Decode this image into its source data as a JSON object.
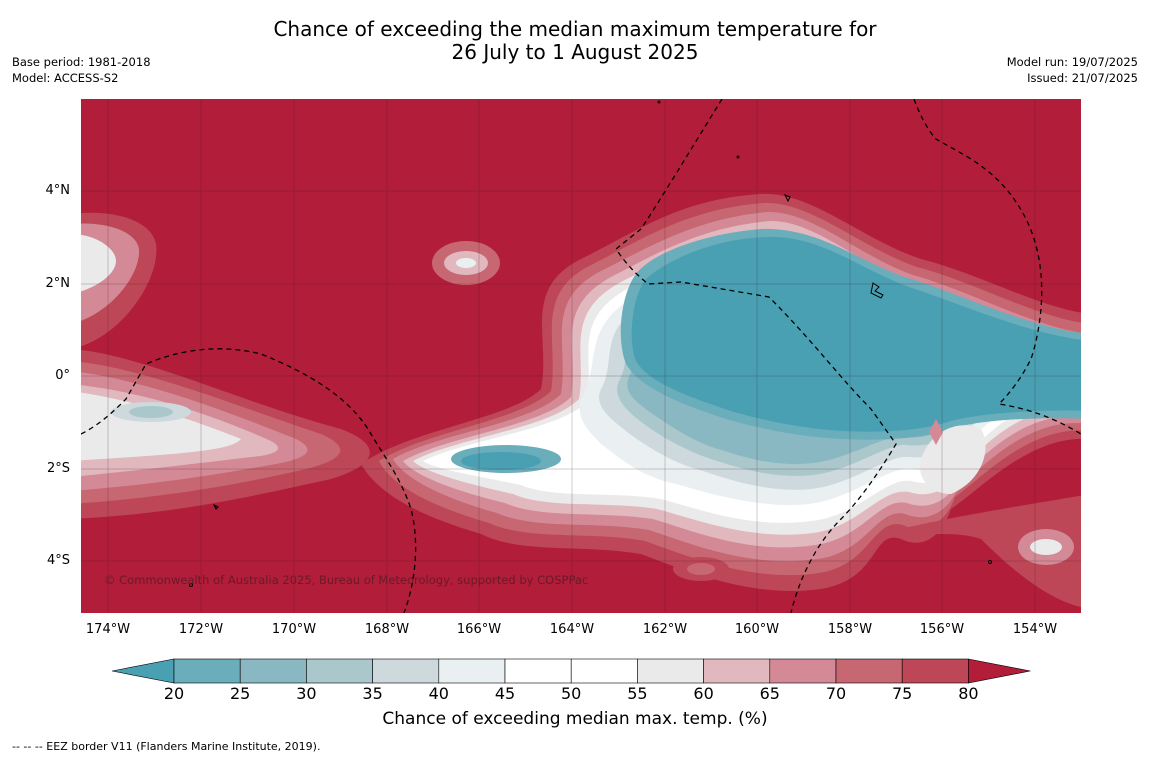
{
  "title_line1": "Chance of exceeding the median maximum temperature for",
  "title_line2": "26 July to 1 August 2025",
  "meta_left": [
    "Base period: 1981-2018",
    "Model: ACCESS-S2"
  ],
  "meta_right": [
    "Model run: 19/07/2025",
    "Issued: 21/07/2025"
  ],
  "lat_ticks": [
    "4°N",
    "2°N",
    "0°",
    "2°S",
    "4°S"
  ],
  "lon_ticks": [
    "174°W",
    "172°W",
    "170°W",
    "168°W",
    "166°W",
    "164°W",
    "162°W",
    "160°W",
    "158°W",
    "156°W",
    "154°W"
  ],
  "copyright": "© Commonwealth of Australia 2025, Bureau of Meteorology, supported by COSPPac",
  "colorbar": {
    "ticks": [
      "20",
      "25",
      "30",
      "35",
      "40",
      "45",
      "50",
      "55",
      "60",
      "65",
      "70",
      "75",
      "80"
    ],
    "colors": [
      "#49a0b3",
      "#6aadbb",
      "#89b8c3",
      "#aac7cc",
      "#cdd9dc",
      "#eaf0f1",
      "#ffffff",
      "#ffffff",
      "#ebeaea",
      "#e2b8bf",
      "#d48a96",
      "#c76772",
      "#bd4756",
      "#b21d3a"
    ],
    "label": "Chance of exceeding median max. temp. (%)"
  },
  "footer": "-- -- -- EEZ border V11 (Flanders Marine Institute, 2019)."
}
